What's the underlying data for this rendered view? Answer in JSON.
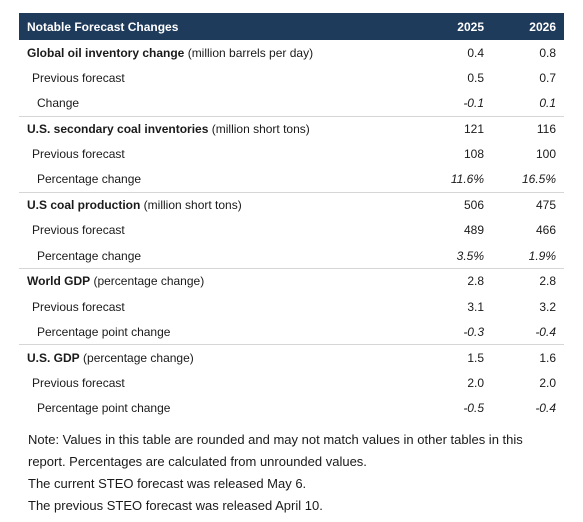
{
  "header": {
    "title": "Notable Forecast Changes",
    "year1": "2025",
    "year2": "2026"
  },
  "rows": [
    {
      "type": "group",
      "bold": "Global oil inventory change",
      "unit": " (million barrels per day)",
      "v1": "0.4",
      "v2": "0.8"
    },
    {
      "type": "sub",
      "label": "Previous forecast",
      "v1": "0.5",
      "v2": "0.7"
    },
    {
      "type": "chg",
      "label": "Change",
      "v1": "-0.1",
      "v2": "0.1"
    },
    {
      "type": "group",
      "bold": "U.S. secondary coal inventories",
      "unit": " (million short tons)",
      "v1": "121",
      "v2": "116"
    },
    {
      "type": "sub",
      "label": "Previous forecast",
      "v1": "108",
      "v2": "100"
    },
    {
      "type": "chg",
      "label": "Percentage change",
      "v1": "11.6%",
      "v2": "16.5%"
    },
    {
      "type": "group",
      "bold": "U.S coal production",
      "unit": " (million short tons)",
      "v1": "506",
      "v2": "475"
    },
    {
      "type": "sub",
      "label": "Previous forecast",
      "v1": "489",
      "v2": "466"
    },
    {
      "type": "chg",
      "label": "Percentage change",
      "v1": "3.5%",
      "v2": "1.9%"
    },
    {
      "type": "group",
      "bold": "World GDP",
      "unit": " (percentage change)",
      "v1": "2.8",
      "v2": "2.8"
    },
    {
      "type": "sub",
      "label": "Previous forecast",
      "v1": "3.1",
      "v2": "3.2"
    },
    {
      "type": "chg",
      "label": "Percentage point change",
      "v1": "-0.3",
      "v2": "-0.4"
    },
    {
      "type": "group",
      "bold": "U.S. GDP",
      "unit": " (percentage change)",
      "v1": "1.5",
      "v2": "1.6"
    },
    {
      "type": "sub",
      "label": "Previous forecast",
      "v1": "2.0",
      "v2": "2.0"
    },
    {
      "type": "chg",
      "label": "Percentage point change",
      "v1": "-0.5",
      "v2": "-0.4"
    }
  ],
  "notes": [
    "Note: Values in this table are rounded and may not match values in other tables in this report. Percentages are calculated from unrounded values.",
    "The current STEO forecast was released May 6.",
    "The previous STEO forecast was released April 10."
  ],
  "colors": {
    "header_bg": "#1f3b5c",
    "header_text": "#ffffff",
    "divider": "#d6d6d6"
  }
}
